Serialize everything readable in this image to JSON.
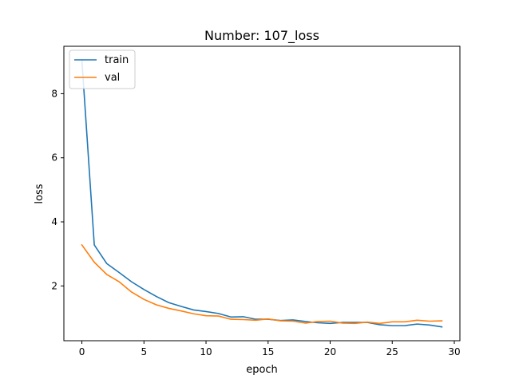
{
  "chart_data": {
    "type": "line",
    "title": "Number: 107_loss",
    "xlabel": "epoch",
    "ylabel": "loss",
    "xlim": [
      -1.45,
      30.45
    ],
    "ylim": [
      0.29,
      9.48
    ],
    "xticks": [
      0,
      5,
      10,
      15,
      20,
      25,
      30
    ],
    "yticks": [
      2,
      4,
      6,
      8
    ],
    "grid": false,
    "legend_position": "top-left",
    "x": [
      0,
      1,
      2,
      3,
      4,
      5,
      6,
      7,
      8,
      9,
      10,
      11,
      12,
      13,
      14,
      15,
      16,
      17,
      18,
      19,
      20,
      21,
      22,
      23,
      24,
      25,
      26,
      27,
      28,
      29
    ],
    "series": [
      {
        "name": "train",
        "color": "#1f77b4",
        "values": [
          9.05,
          3.28,
          2.7,
          2.42,
          2.13,
          1.89,
          1.67,
          1.48,
          1.36,
          1.25,
          1.2,
          1.14,
          1.03,
          1.04,
          0.96,
          0.96,
          0.92,
          0.94,
          0.89,
          0.85,
          0.83,
          0.86,
          0.86,
          0.86,
          0.79,
          0.76,
          0.76,
          0.81,
          0.78,
          0.72
        ]
      },
      {
        "name": "val",
        "color": "#ff7f0e",
        "values": [
          3.28,
          2.74,
          2.36,
          2.13,
          1.81,
          1.58,
          1.41,
          1.3,
          1.22,
          1.13,
          1.07,
          1.06,
          0.96,
          0.95,
          0.93,
          0.97,
          0.91,
          0.9,
          0.84,
          0.89,
          0.9,
          0.84,
          0.83,
          0.87,
          0.83,
          0.88,
          0.88,
          0.93,
          0.9,
          0.91
        ]
      }
    ]
  }
}
